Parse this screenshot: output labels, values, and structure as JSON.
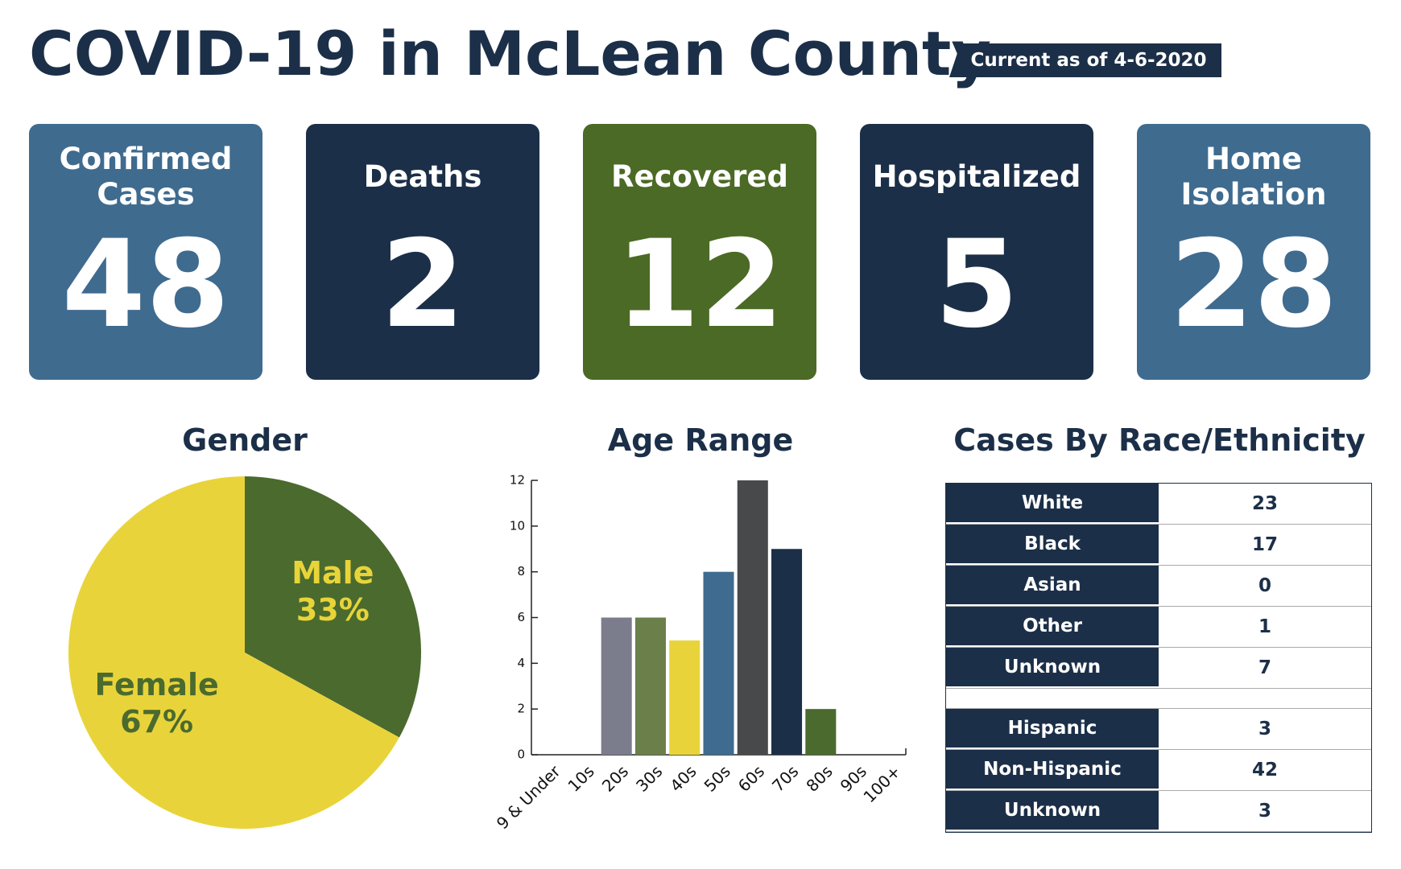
{
  "title": "COVID-19 in McLean County",
  "as_of": "Current as of 4-6-2020",
  "stats": [
    {
      "label": "Confirmed Cases",
      "value": 48,
      "color": "#3f6b8f"
    },
    {
      "label": "Deaths",
      "value": 2,
      "color": "#1c2f48"
    },
    {
      "label": "Recovered",
      "value": 12,
      "color": "#4b6a25"
    },
    {
      "label": "Hospitalized",
      "value": 5,
      "color": "#1c2f48"
    },
    {
      "label": "Home Isolation",
      "value": 28,
      "color": "#3f6b8f"
    }
  ],
  "chart_data": [
    {
      "type": "pie",
      "title": "Gender",
      "categories": [
        "Male",
        "Female"
      ],
      "values": [
        33,
        67
      ],
      "value_labels": [
        "33%",
        "67%"
      ],
      "colors": [
        "#4b6a2e",
        "#e8d43a"
      ],
      "label_colors": [
        "#e8d43a",
        "#4b6a2e"
      ]
    },
    {
      "type": "bar",
      "title": "Age Range",
      "categories": [
        "9 & Under",
        "10s",
        "20s",
        "30s",
        "40s",
        "50s",
        "60s",
        "70s",
        "80s",
        "90s",
        "100+"
      ],
      "values": [
        0,
        0,
        6,
        6,
        5,
        8,
        12,
        9,
        2,
        0,
        0
      ],
      "colors": [
        null,
        null,
        "#7b7d8c",
        "#6b7f4a",
        "#e8d43a",
        "#3e6b8f",
        "#48494b",
        "#1c2f48",
        "#4b6a2e",
        null,
        null
      ],
      "ylim": [
        0,
        12
      ],
      "yticks": [
        0,
        2,
        4,
        6,
        8,
        10,
        12
      ]
    }
  ],
  "race_table": {
    "title": "Cases By Race/Ethnicity",
    "race_rows": [
      [
        "White",
        23
      ],
      [
        "Black",
        17
      ],
      [
        "Asian",
        0
      ],
      [
        "Other",
        1
      ],
      [
        "Unknown",
        7
      ]
    ],
    "ethnicity_rows": [
      [
        "Hispanic",
        3
      ],
      [
        "Non-Hispanic",
        42
      ],
      [
        "Unknown",
        3
      ]
    ]
  }
}
